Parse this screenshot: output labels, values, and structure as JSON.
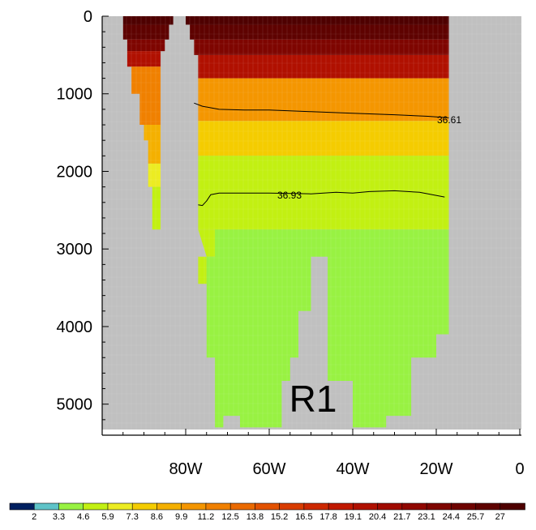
{
  "chart_data": {
    "type": "heatmap",
    "panel_label": "R1",
    "x_axis": {
      "ticks": [
        {
          "value": -80,
          "label": "80W"
        },
        {
          "value": -60,
          "label": "60W"
        },
        {
          "value": -40,
          "label": "40W"
        },
        {
          "value": -20,
          "label": "20W"
        },
        {
          "value": 0,
          "label": "0"
        }
      ],
      "xlim": [
        -100,
        0
      ]
    },
    "y_axis": {
      "reversed": true,
      "ticks": [
        {
          "value": 0,
          "label": "0"
        },
        {
          "value": 1000,
          "label": "1000"
        },
        {
          "value": 2000,
          "label": "2000"
        },
        {
          "value": 3000,
          "label": "3000"
        },
        {
          "value": 4000,
          "label": "4000"
        },
        {
          "value": 5000,
          "label": "5000"
        }
      ],
      "ylim": [
        0,
        5400
      ]
    },
    "colorbar": {
      "labels": [
        "2",
        "3.3",
        "4.6",
        "5.9",
        "7.3",
        "8.6",
        "9.9",
        "11.2",
        "12.5",
        "13.8",
        "15.2",
        "16.5",
        "17.8",
        "19.1",
        "20.4",
        "21.7",
        "23.1",
        "24.4",
        "25.7",
        "27"
      ],
      "colors": [
        "#002060",
        "#5fc3c8",
        "#98f242",
        "#c2f012",
        "#ecec22",
        "#f4cc00",
        "#f4b000",
        "#f49600",
        "#f08000",
        "#ea6a00",
        "#e25200",
        "#d83c00",
        "#cc2800",
        "#c01800",
        "#b01000",
        "#a00a00",
        "#900700",
        "#7e0500",
        "#6e0300",
        "#5e0200",
        "#4e0000"
      ]
    },
    "background_color": "#c0c0c0",
    "contours": [
      {
        "label": "36.61",
        "points": [
          [
            -78,
            1120
          ],
          [
            -76,
            1160
          ],
          [
            -74,
            1180
          ],
          [
            -72,
            1200
          ],
          [
            -66,
            1210
          ],
          [
            -60,
            1210
          ],
          [
            -50,
            1230
          ],
          [
            -40,
            1250
          ],
          [
            -30,
            1270
          ],
          [
            -22,
            1290
          ],
          [
            -17,
            1310
          ]
        ]
      },
      {
        "label": "36.93",
        "points": [
          [
            -77,
            2430
          ],
          [
            -76,
            2440
          ],
          [
            -75,
            2380
          ],
          [
            -74,
            2300
          ],
          [
            -72,
            2280
          ],
          [
            -66,
            2280
          ],
          [
            -60,
            2280
          ],
          [
            -50,
            2290
          ],
          [
            -44,
            2270
          ],
          [
            -40,
            2280
          ],
          [
            -36,
            2260
          ],
          [
            -30,
            2250
          ],
          [
            -24,
            2270
          ],
          [
            -18,
            2330
          ]
        ]
      }
    ],
    "fill_regions": [
      {
        "level": 27,
        "polygon": [
          [
            -95,
            0
          ],
          [
            -83,
            0
          ],
          [
            -83,
            110
          ],
          [
            -95,
            110
          ]
        ]
      },
      {
        "level": 27,
        "polygon": [
          [
            -80,
            0
          ],
          [
            -17,
            0
          ],
          [
            -17,
            110
          ],
          [
            -80,
            110
          ]
        ]
      },
      {
        "level": 25.7,
        "polygon": [
          [
            -95,
            110
          ],
          [
            -84,
            110
          ],
          [
            -84,
            300
          ],
          [
            -95,
            300
          ]
        ]
      },
      {
        "level": 25.7,
        "polygon": [
          [
            -79,
            110
          ],
          [
            -17,
            110
          ],
          [
            -17,
            300
          ],
          [
            -79,
            300
          ]
        ]
      },
      {
        "level": 23.1,
        "polygon": [
          [
            -94,
            300
          ],
          [
            -85,
            300
          ],
          [
            -85,
            450
          ],
          [
            -94,
            450
          ]
        ]
      },
      {
        "level": 23.1,
        "polygon": [
          [
            -78,
            300
          ],
          [
            -17,
            300
          ],
          [
            -17,
            500
          ],
          [
            -78,
            500
          ]
        ]
      },
      {
        "level": 19.1,
        "polygon": [
          [
            -94,
            450
          ],
          [
            -86,
            450
          ],
          [
            -86,
            650
          ],
          [
            -94,
            650
          ]
        ]
      },
      {
        "level": 19.1,
        "polygon": [
          [
            -77,
            500
          ],
          [
            -17,
            500
          ],
          [
            -17,
            800
          ],
          [
            -77,
            800
          ]
        ]
      },
      {
        "level": 11.2,
        "polygon": [
          [
            -93,
            650
          ],
          [
            -86,
            650
          ],
          [
            -86,
            1400
          ],
          [
            -91,
            1400
          ],
          [
            -91,
            1000
          ],
          [
            -93,
            1000
          ]
        ]
      },
      {
        "level": 9.9,
        "polygon": [
          [
            -77,
            800
          ],
          [
            -17,
            800
          ],
          [
            -17,
            1350
          ],
          [
            -77,
            1350
          ]
        ]
      },
      {
        "level": 8.6,
        "polygon": [
          [
            -90,
            1400
          ],
          [
            -86,
            1400
          ],
          [
            -86,
            1900
          ],
          [
            -89,
            1900
          ],
          [
            -89,
            1600
          ],
          [
            -90,
            1600
          ]
        ]
      },
      {
        "level": 7.3,
        "polygon": [
          [
            -77,
            1350
          ],
          [
            -17,
            1350
          ],
          [
            -17,
            1800
          ],
          [
            -77,
            1800
          ]
        ]
      },
      {
        "level": 5.9,
        "polygon": [
          [
            -89,
            1900
          ],
          [
            -86,
            1900
          ],
          [
            -86,
            2200
          ],
          [
            -89,
            2200
          ]
        ]
      },
      {
        "level": 4.6,
        "polygon": [
          [
            -77,
            1800
          ],
          [
            -17,
            1800
          ],
          [
            -17,
            2750
          ],
          [
            -77,
            2750
          ]
        ]
      },
      {
        "level": 4.6,
        "polygon": [
          [
            -88,
            2200
          ],
          [
            -86,
            2200
          ],
          [
            -86,
            2750
          ],
          [
            -88,
            2750
          ]
        ]
      },
      {
        "level": 4.6,
        "polygon": [
          [
            -77,
            2750
          ],
          [
            -57,
            2750
          ],
          [
            -57,
            3100
          ],
          [
            -77,
            3100
          ],
          [
            -77,
            3450
          ],
          [
            -75,
            3450
          ],
          [
            -75,
            3100
          ]
        ]
      },
      {
        "level": 3.3,
        "polygon": [
          [
            -73,
            2750
          ],
          [
            -17,
            2750
          ],
          [
            -17,
            4100
          ],
          [
            -20,
            4100
          ],
          [
            -20,
            4400
          ],
          [
            -26,
            4400
          ],
          [
            -26,
            5150
          ],
          [
            -32,
            5150
          ],
          [
            -32,
            5300
          ],
          [
            -40,
            5300
          ],
          [
            -40,
            4700
          ],
          [
            -46,
            4700
          ],
          [
            -46,
            3100
          ],
          [
            -50,
            3100
          ],
          [
            -50,
            3800
          ],
          [
            -53,
            3800
          ],
          [
            -53,
            4400
          ],
          [
            -55,
            4400
          ],
          [
            -55,
            4700
          ],
          [
            -57,
            4700
          ],
          [
            -57,
            5300
          ],
          [
            -67,
            5300
          ],
          [
            -67,
            5150
          ],
          [
            -71,
            5150
          ],
          [
            -71,
            5300
          ],
          [
            -73,
            5300
          ],
          [
            -73,
            4400
          ],
          [
            -75,
            4400
          ],
          [
            -75,
            3100
          ],
          [
            -73,
            3100
          ]
        ]
      }
    ]
  }
}
